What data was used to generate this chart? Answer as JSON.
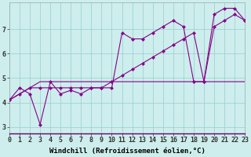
{
  "xlabel": "Windchill (Refroidissement éolien,°C)",
  "bg_color": "#cdeeed",
  "line_color": "#880088",
  "grid_color": "#99cccc",
  "series1_x": [
    0,
    1,
    2,
    3,
    4,
    5,
    6,
    7,
    8,
    9,
    10,
    11,
    12,
    13,
    14,
    15,
    16,
    17,
    18,
    19,
    20,
    21,
    22,
    23
  ],
  "series1_y": [
    4.1,
    4.6,
    4.35,
    3.1,
    4.85,
    4.35,
    4.5,
    4.35,
    4.6,
    4.6,
    4.6,
    6.85,
    6.6,
    6.6,
    6.85,
    7.1,
    7.35,
    7.1,
    4.85,
    4.85,
    7.6,
    7.85,
    7.85,
    7.35
  ],
  "series2_x": [
    0,
    1,
    2,
    3,
    4,
    5,
    6,
    7,
    8,
    9,
    10,
    11,
    12,
    13,
    14,
    15,
    16,
    17,
    18,
    19,
    20,
    21,
    22,
    23
  ],
  "series2_y": [
    4.1,
    4.35,
    4.6,
    4.6,
    4.6,
    4.6,
    4.6,
    4.6,
    4.6,
    4.6,
    4.85,
    5.1,
    5.35,
    5.6,
    5.85,
    6.1,
    6.35,
    6.6,
    6.85,
    4.85,
    7.1,
    7.35,
    7.6,
    7.35
  ],
  "series3_x": [
    0,
    1,
    2,
    3,
    4,
    5,
    6,
    7,
    8,
    9,
    10,
    11,
    12,
    13,
    14,
    15,
    16,
    17,
    18,
    19,
    20,
    21,
    22,
    23
  ],
  "series3_y": [
    4.1,
    4.35,
    4.6,
    4.85,
    4.85,
    4.85,
    4.85,
    4.85,
    4.85,
    4.85,
    4.85,
    4.85,
    4.85,
    4.85,
    4.85,
    4.85,
    4.85,
    4.85,
    4.85,
    4.85,
    4.85,
    4.85,
    4.85,
    4.85
  ],
  "xlim": [
    0,
    23
  ],
  "ylim": [
    2.75,
    8.1
  ],
  "yticks": [
    3,
    4,
    5,
    6,
    7
  ],
  "xtick_labels": [
    "0",
    "1",
    "2",
    "3",
    "4",
    "5",
    "6",
    "7",
    "8",
    "9",
    "10",
    "11",
    "12",
    "13",
    "14",
    "15",
    "16",
    "17",
    "18",
    "19",
    "20",
    "21",
    "22",
    "23"
  ],
  "marker": "D",
  "markersize": 2.5,
  "linewidth": 0.8,
  "xlabel_fontsize": 6.5,
  "tick_fontsize": 6
}
